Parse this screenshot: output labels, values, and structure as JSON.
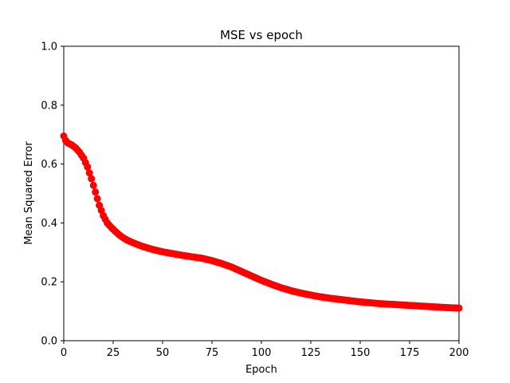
{
  "chart_data": {
    "type": "scatter",
    "title": "MSE vs epoch",
    "xlabel": "Epoch",
    "ylabel": "Mean Squared Error",
    "xlim": [
      0,
      200
    ],
    "ylim": [
      0.0,
      1.0
    ],
    "xticks": [
      0,
      25,
      50,
      75,
      100,
      125,
      150,
      175,
      200
    ],
    "yticks": [
      0.0,
      0.2,
      0.4,
      0.6,
      0.8,
      1.0
    ],
    "xtick_labels": [
      "0",
      "25",
      "50",
      "75",
      "100",
      "125",
      "150",
      "175",
      "200"
    ],
    "ytick_labels": [
      "0.0",
      "0.2",
      "0.4",
      "0.6",
      "0.8",
      "1.0"
    ],
    "grid": false,
    "marker_color": "#ff0000",
    "series": [
      {
        "x": [
          0,
          1,
          2,
          4,
          6,
          8,
          10,
          12,
          14,
          16,
          18,
          20,
          22,
          24,
          26,
          28,
          30,
          32,
          35,
          38,
          40,
          45,
          50,
          55,
          60,
          65,
          70,
          75,
          80,
          85,
          90,
          95,
          100,
          105,
          110,
          115,
          120,
          125,
          130,
          135,
          140,
          145,
          150,
          155,
          160,
          165,
          170,
          175,
          180,
          185,
          190,
          195,
          200
        ],
        "y": [
          0.695,
          0.68,
          0.672,
          0.665,
          0.655,
          0.64,
          0.62,
          0.59,
          0.55,
          0.505,
          0.46,
          0.425,
          0.4,
          0.385,
          0.372,
          0.36,
          0.35,
          0.342,
          0.333,
          0.325,
          0.32,
          0.31,
          0.302,
          0.296,
          0.29,
          0.285,
          0.28,
          0.272,
          0.262,
          0.25,
          0.235,
          0.22,
          0.205,
          0.192,
          0.18,
          0.17,
          0.162,
          0.155,
          0.149,
          0.144,
          0.14,
          0.136,
          0.132,
          0.129,
          0.126,
          0.124,
          0.122,
          0.12,
          0.118,
          0.116,
          0.114,
          0.112,
          0.111
        ]
      }
    ]
  }
}
